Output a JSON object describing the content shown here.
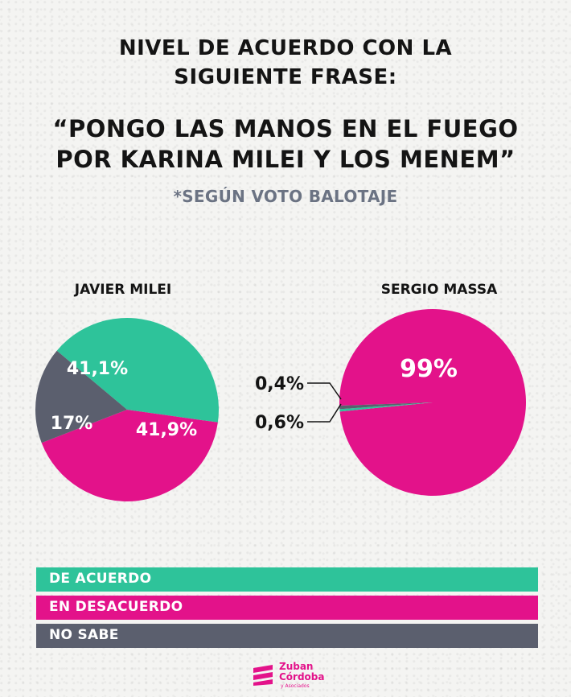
{
  "title_line1": "NIVEL DE ACUERDO CON LA",
  "title_line2": "SIGUIENTE FRASE:",
  "quote_line1": "“PONGO LAS MANOS EN EL FUEGO",
  "quote_line2": "POR KARINA MILEI Y LOS MENEM”",
  "subtitle": "*SEGÚN VOTO BALOTAJE",
  "colors": {
    "de_acuerdo": "#2ec39a",
    "en_desacuerdo": "#e3128a",
    "no_sabe": "#5b5f6e"
  },
  "chart_data": [
    {
      "type": "pie",
      "title": "JAVIER MILEI",
      "categories": [
        "DE ACUERDO",
        "EN DESACUERDO",
        "NO SABE"
      ],
      "values": [
        41.1,
        41.9,
        17
      ],
      "labels": [
        "41,1%",
        "41,9%",
        "17%"
      ]
    },
    {
      "type": "pie",
      "title": "SERGIO MASSA",
      "categories": [
        "EN DESACUERDO",
        "DE ACUERDO",
        "NO SABE"
      ],
      "values": [
        99,
        0.4,
        0.6
      ],
      "labels": [
        "99%",
        "0,4%",
        "0,6%"
      ]
    }
  ],
  "legend": [
    "DE ACUERDO",
    "EN DESACUERDO",
    "NO SABE"
  ],
  "logo": {
    "line1": "Zuban",
    "line2": "Córdoba",
    "line3": "y Asociados"
  }
}
